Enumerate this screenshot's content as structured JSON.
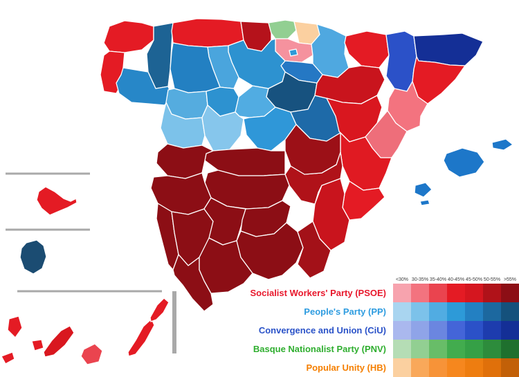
{
  "legend": {
    "thresholds": [
      "<30%",
      "30-35%",
      "35-40%",
      "40-45%",
      "45-50%",
      "50-55%",
      ">55%"
    ],
    "parties": [
      {
        "id": "psoe",
        "label": "Socialist Workers' Party (PSOE)",
        "label_color": "#e8182c",
        "swatches": [
          "#f7a3ae",
          "#f3737f",
          "#ea444f",
          "#e41b24",
          "#d5161f",
          "#b01219",
          "#8c0e15"
        ]
      },
      {
        "id": "pp",
        "label": "People's Party (PP)",
        "label_color": "#2e9ce0",
        "swatches": [
          "#a9d5f0",
          "#7cc2ea",
          "#51ace2",
          "#2d9ad8",
          "#2380c2",
          "#1c689f",
          "#15517c"
        ]
      },
      {
        "id": "ciu",
        "label": "Convergence and Union (CiU)",
        "label_color": "#2a52c8",
        "swatches": [
          "#aab8ee",
          "#8fa4e8",
          "#6b86e0",
          "#4465d8",
          "#2b51c8",
          "#1d3cae",
          "#142f96"
        ]
      },
      {
        "id": "pnv",
        "label": "Basque Nationalist Party (PNV)",
        "label_color": "#2fae2f",
        "swatches": [
          "#b5ddb5",
          "#92cf92",
          "#68bd68",
          "#42ac4e",
          "#35a046",
          "#2d8c3c",
          "#1f702e"
        ]
      },
      {
        "id": "hb",
        "label": "Popular Unity (HB)",
        "label_color": "#f57f00",
        "swatches": [
          "#fbd0a0",
          "#f9a85a",
          "#f79338",
          "#f6871e",
          "#ee7d10",
          "#e0700a",
          "#c26008"
        ]
      }
    ]
  },
  "map": {
    "provinces": [
      {
        "id": "a-coruna",
        "name": "A Coruña",
        "party": "PSOE",
        "color": "#e41b24"
      },
      {
        "id": "lugo",
        "name": "Lugo",
        "party": "PP",
        "color": "#1d6394"
      },
      {
        "id": "pontevedra",
        "name": "Pontevedra",
        "party": "PSOE",
        "color": "#e41b24"
      },
      {
        "id": "ourense",
        "name": "Ourense",
        "party": "PP",
        "color": "#2787c8"
      },
      {
        "id": "asturias",
        "name": "Asturias",
        "party": "PSOE",
        "color": "#e41b24"
      },
      {
        "id": "cantabria",
        "name": "Cantabria",
        "party": "PSOE",
        "color": "#b5121b"
      },
      {
        "id": "bizkaia",
        "name": "Bizkaia",
        "party": "PNV",
        "color": "#92cf92"
      },
      {
        "id": "gipuzkoa",
        "name": "Gipuzkoa",
        "party": "HB",
        "color": "#fbd0a0"
      },
      {
        "id": "alava",
        "name": "Álava",
        "party": "PSOE",
        "color": "#f5929e"
      },
      {
        "id": "trevino",
        "name": "Treviño enclave",
        "party": "PP",
        "color": "#2d9ad8"
      },
      {
        "id": "navarra",
        "name": "Navarra",
        "party": "PP",
        "color": "#4fa8e0"
      },
      {
        "id": "la-rioja",
        "name": "La Rioja",
        "party": "PP",
        "color": "#2578c4"
      },
      {
        "id": "burgos",
        "name": "Burgos",
        "party": "PP",
        "color": "#2d92d0"
      },
      {
        "id": "palencia",
        "name": "Palencia",
        "party": "PP",
        "color": "#4aa5dd"
      },
      {
        "id": "leon",
        "name": "León",
        "party": "PP",
        "color": "#2380c2"
      },
      {
        "id": "zamora",
        "name": "Zamora",
        "party": "PP",
        "color": "#55acdf"
      },
      {
        "id": "valladolid",
        "name": "Valladolid",
        "party": "PP",
        "color": "#2d92d0"
      },
      {
        "id": "salamanca",
        "name": "Salamanca",
        "party": "PP",
        "color": "#7cc2ea"
      },
      {
        "id": "avila",
        "name": "Ávila",
        "party": "PP",
        "color": "#86c6ec"
      },
      {
        "id": "segovia",
        "name": "Segovia",
        "party": "PP",
        "color": "#51ace2"
      },
      {
        "id": "soria",
        "name": "Soria",
        "party": "PP",
        "color": "#17527f"
      },
      {
        "id": "madrid",
        "name": "Madrid",
        "party": "PP",
        "color": "#2f97d8"
      },
      {
        "id": "guadalajara",
        "name": "Guadalajara",
        "party": "PP",
        "color": "#1e6aa8"
      },
      {
        "id": "huesca",
        "name": "Huesca",
        "party": "PSOE",
        "color": "#e41b24"
      },
      {
        "id": "zaragoza",
        "name": "Zaragoza",
        "party": "PSOE",
        "color": "#c9141d"
      },
      {
        "id": "teruel",
        "name": "Teruel",
        "party": "PSOE",
        "color": "#d9171f"
      },
      {
        "id": "lleida",
        "name": "Lleida",
        "party": "CiU",
        "color": "#2b51c8"
      },
      {
        "id": "girona",
        "name": "Girona",
        "party": "CiU",
        "color": "#142f96"
      },
      {
        "id": "barcelona",
        "name": "Barcelona",
        "party": "PSOE",
        "color": "#e41b24"
      },
      {
        "id": "tarragona",
        "name": "Tarragona",
        "party": "PSOE",
        "color": "#f3737f"
      },
      {
        "id": "castellon",
        "name": "Castellón",
        "party": "PSOE",
        "color": "#ee6e7a"
      },
      {
        "id": "valencia",
        "name": "Valencia",
        "party": "PSOE",
        "color": "#e01a22"
      },
      {
        "id": "alicante",
        "name": "Alicante",
        "party": "PSOE",
        "color": "#e41b24"
      },
      {
        "id": "murcia",
        "name": "Murcia",
        "party": "PSOE",
        "color": "#c9141d"
      },
      {
        "id": "albacete",
        "name": "Albacete",
        "party": "PSOE",
        "color": "#b01219"
      },
      {
        "id": "cuenca",
        "name": "Cuenca",
        "party": "PSOE",
        "color": "#9c1017"
      },
      {
        "id": "toledo",
        "name": "Toledo",
        "party": "PSOE",
        "color": "#8c0e15"
      },
      {
        "id": "ciudad-real",
        "name": "Ciudad Real",
        "party": "PSOE",
        "color": "#8c0e15"
      },
      {
        "id": "caceres",
        "name": "Cáceres",
        "party": "PSOE",
        "color": "#8c0e15"
      },
      {
        "id": "badajoz",
        "name": "Badajoz",
        "party": "PSOE",
        "color": "#8c0e15"
      },
      {
        "id": "huelva",
        "name": "Huelva",
        "party": "PSOE",
        "color": "#8c0e15"
      },
      {
        "id": "sevilla",
        "name": "Sevilla",
        "party": "PSOE",
        "color": "#8c0e15"
      },
      {
        "id": "cadiz",
        "name": "Cádiz",
        "party": "PSOE",
        "color": "#8c0e15"
      },
      {
        "id": "cordoba",
        "name": "Córdoba",
        "party": "PSOE",
        "color": "#8c0e15"
      },
      {
        "id": "jaen",
        "name": "Jaén",
        "party": "PSOE",
        "color": "#8c0e15"
      },
      {
        "id": "malaga",
        "name": "Málaga",
        "party": "PSOE",
        "color": "#8c0e15"
      },
      {
        "id": "granada",
        "name": "Granada",
        "party": "PSOE",
        "color": "#8c0e15"
      },
      {
        "id": "almeria",
        "name": "Almería",
        "party": "PSOE",
        "color": "#a31118"
      },
      {
        "id": "mallorca",
        "name": "Mallorca",
        "party": "PP",
        "color": "#1d77c9"
      },
      {
        "id": "menorca",
        "name": "Menorca",
        "party": "PP",
        "color": "#1d77c9"
      },
      {
        "id": "ibiza",
        "name": "Ibiza",
        "party": "PP",
        "color": "#1d77c9"
      },
      {
        "id": "formentera",
        "name": "Formentera",
        "party": "PP",
        "color": "#1d77c9"
      },
      {
        "id": "la-palma",
        "name": "La Palma",
        "party": "PSOE",
        "color": "#e41b24"
      },
      {
        "id": "el-hierro",
        "name": "El Hierro",
        "party": "PSOE",
        "color": "#e41b24"
      },
      {
        "id": "la-gomera",
        "name": "La Gomera",
        "party": "PSOE",
        "color": "#e41b24"
      },
      {
        "id": "tenerife",
        "name": "Tenerife",
        "party": "PSOE",
        "color": "#d9171f"
      },
      {
        "id": "gran-canaria",
        "name": "Gran Canaria",
        "party": "PSOE",
        "color": "#ea444f"
      },
      {
        "id": "fuerteventura",
        "name": "Fuerteventura",
        "party": "PSOE",
        "color": "#e41b24"
      },
      {
        "id": "lanzarote",
        "name": "Lanzarote",
        "party": "PSOE",
        "color": "#e41b24"
      },
      {
        "id": "ceuta",
        "name": "Ceuta (inset)",
        "party": "PSOE",
        "color": "#e41b24"
      },
      {
        "id": "melilla",
        "name": "Melilla (inset)",
        "party": "PP",
        "color": "#1b4c72"
      }
    ]
  }
}
